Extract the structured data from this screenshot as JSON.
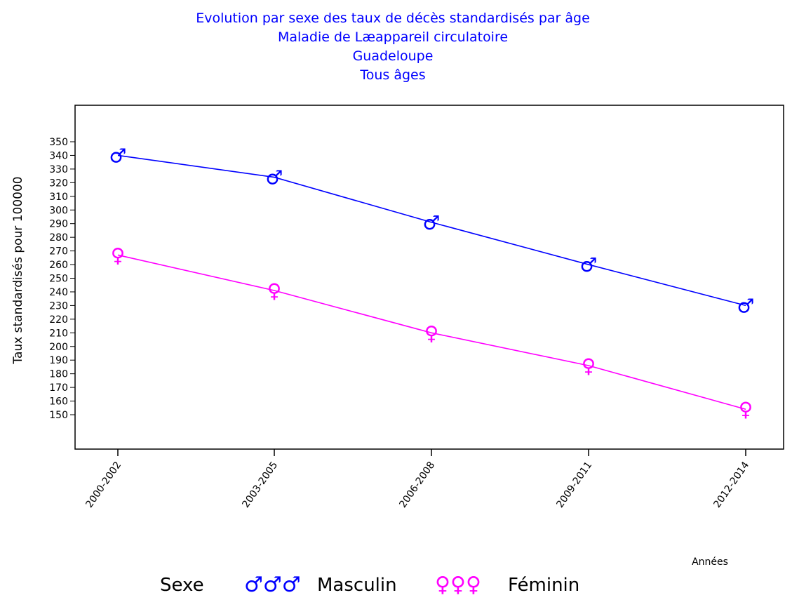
{
  "chart_data": {
    "type": "line",
    "title_lines": [
      "Evolution par sexe des taux de décès standardisés par âge",
      "Maladie de Læappareil circulatoire",
      "Guadeloupe",
      "Tous âges"
    ],
    "xlabel": "Années",
    "ylabel": "Taux standardisés pour 100000",
    "categories": [
      "2000-2002",
      "2003-2005",
      "2006-2008",
      "2009-2011",
      "2012-2014"
    ],
    "y_ticks": [
      150,
      160,
      170,
      180,
      190,
      200,
      210,
      220,
      230,
      240,
      250,
      260,
      270,
      280,
      290,
      300,
      310,
      320,
      330,
      340,
      350
    ],
    "ylim": [
      150,
      350
    ],
    "grid": false,
    "legend": {
      "position": "bottom",
      "title": "Sexe"
    },
    "series": [
      {
        "name": "Masculin",
        "color": "#0000ff",
        "marker_icon": "male-symbol-icon",
        "glyph": "♂",
        "legend_glyph": "♂♂♂",
        "values": [
          340,
          324,
          291,
          260,
          230
        ]
      },
      {
        "name": "Féminin",
        "color": "#ff00ff",
        "marker_icon": "female-symbol-icon",
        "glyph": "♀",
        "legend_glyph": "♀♀♀",
        "values": [
          267,
          241,
          210,
          186,
          154
        ]
      }
    ],
    "text_color": "#0000ff",
    "axis_color": "#000000"
  }
}
